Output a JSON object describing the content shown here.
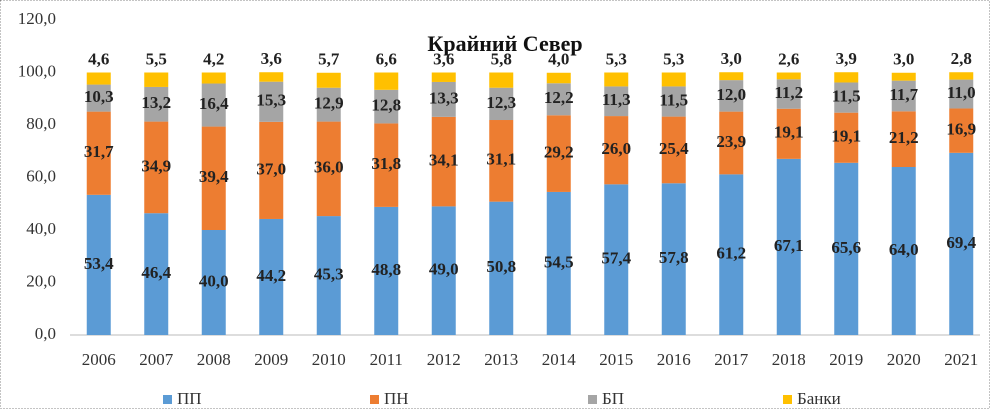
{
  "chart_data": {
    "type": "stacked_bar",
    "title": "Крайний Север",
    "categories": [
      "2006",
      "2007",
      "2008",
      "2009",
      "2010",
      "2011",
      "2012",
      "2013",
      "2014",
      "2015",
      "2016",
      "2017",
      "2018",
      "2019",
      "2020",
      "2021"
    ],
    "series": [
      {
        "name": "ПП",
        "color": "#5b9bd5",
        "values": [
          53.4,
          46.4,
          40.0,
          44.2,
          45.3,
          48.8,
          49.0,
          50.8,
          54.5,
          57.4,
          57.8,
          61.2,
          67.1,
          65.6,
          64.0,
          69.4
        ],
        "value_labels": [
          "53,4",
          "46,4",
          "40,0",
          "44,2",
          "45,3",
          "48,8",
          "49,0",
          "50,8",
          "54,5",
          "57,4",
          "57,8",
          "61,2",
          "67,1",
          "65,6",
          "64,0",
          "69,4"
        ]
      },
      {
        "name": "ПН",
        "color": "#ed7d31",
        "values": [
          31.7,
          34.9,
          39.4,
          37.0,
          36.0,
          31.8,
          34.1,
          31.1,
          29.2,
          26.0,
          25.4,
          23.9,
          19.1,
          19.1,
          21.2,
          16.9
        ],
        "value_labels": [
          "31,7",
          "34,9",
          "39,4",
          "37,0",
          "36,0",
          "31,8",
          "34,1",
          "31,1",
          "29,2",
          "26,0",
          "25,4",
          "23,9",
          "19,1",
          "19,1",
          "21,2",
          "16,9"
        ]
      },
      {
        "name": "БП",
        "color": "#a5a5a5",
        "values": [
          10.3,
          13.2,
          16.4,
          15.3,
          12.9,
          12.8,
          13.3,
          12.3,
          12.2,
          11.3,
          11.5,
          12.0,
          11.2,
          11.5,
          11.7,
          11.0
        ],
        "value_labels": [
          "10,3",
          "13,2",
          "16,4",
          "15,3",
          "12,9",
          "12,8",
          "13,3",
          "12,3",
          "12,2",
          "11,3",
          "11,5",
          "12,0",
          "11,2",
          "11,5",
          "11,7",
          "11,0"
        ]
      },
      {
        "name": "Банки",
        "color": "#ffc000",
        "values": [
          4.6,
          5.5,
          4.2,
          3.6,
          5.7,
          6.6,
          3.6,
          5.8,
          4.0,
          5.3,
          5.3,
          3.0,
          2.6,
          3.9,
          3.0,
          2.8
        ],
        "value_labels": [
          "4,6",
          "5,5",
          "4,2",
          "3,6",
          "5,7",
          "6,6",
          "3,6",
          "5,8",
          "4,0",
          "5,3",
          "5,3",
          "3,0",
          "2,6",
          "3,9",
          "3,0",
          "2,8"
        ]
      }
    ],
    "ylim": [
      0,
      120
    ],
    "yticks": [
      {
        "value": 0,
        "label": "0,0"
      },
      {
        "value": 20,
        "label": "20,0"
      },
      {
        "value": 40,
        "label": "40,0"
      },
      {
        "value": 60,
        "label": "60,0"
      },
      {
        "value": 80,
        "label": "80,0"
      },
      {
        "value": 100,
        "label": "100,0"
      },
      {
        "value": 120,
        "label": "120,0"
      }
    ],
    "grid": false,
    "legend": "bottom"
  }
}
